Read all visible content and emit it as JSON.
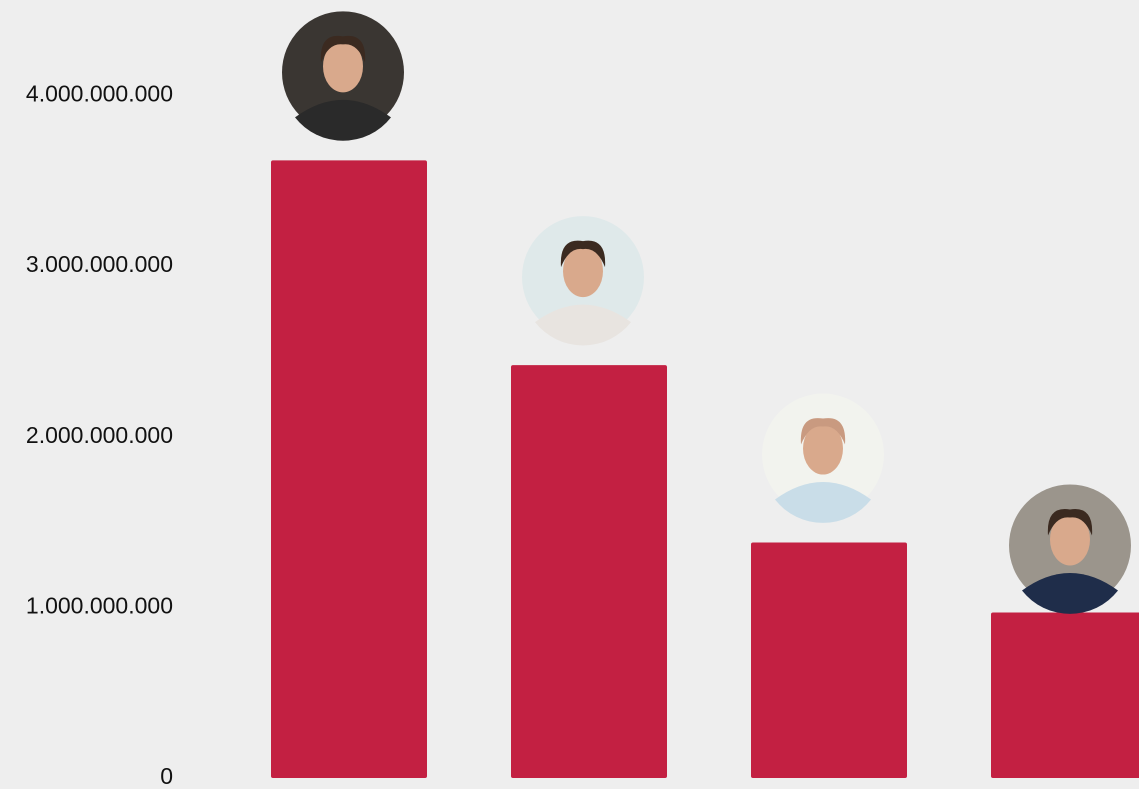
{
  "chart_data": {
    "type": "bar",
    "categories": [
      null,
      null,
      null,
      null
    ],
    "values": [
      3620000000,
      2420000000,
      1380000000,
      970000000
    ],
    "color": "#c32042",
    "ylim": [
      0,
      4560000000
    ],
    "yticks": [
      0,
      {
        "value": 1000000000,
        "label": "1.000.000.000"
      },
      {
        "value": 2000000000,
        "label": "2.000.000.000"
      },
      {
        "value": 3000000000,
        "label": "3.000.000.000"
      },
      {
        "value": 4000000000,
        "label": "4.000.000.000"
      }
    ]
  }
}
